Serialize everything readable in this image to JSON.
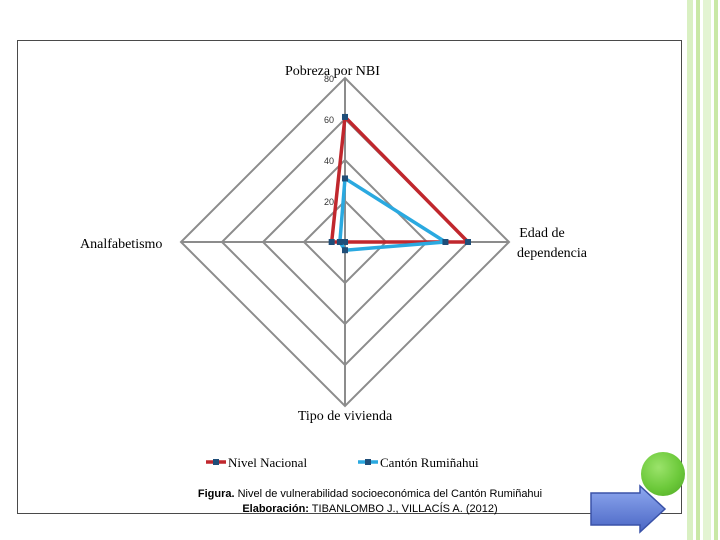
{
  "colors": {
    "grid": "#8c8c8c",
    "nivel_nacional": "#c0272d",
    "canton_rumiñahui": "#2aa9e0",
    "stripe_green": "#c9e8a6",
    "dot_green": "#6cc93a",
    "arrow_blue": "#5b7bd5"
  },
  "chart_data": {
    "type": "radar",
    "axes": [
      "Pobreza por NBI",
      "Edad de dependencia",
      "Tipo de vivienda",
      "Analfabetismo"
    ],
    "rlim": [
      0,
      80
    ],
    "ticks": [
      "80",
      "60",
      "40",
      "20"
    ],
    "tick_values": [
      80,
      60,
      40,
      20
    ],
    "series": [
      {
        "name": "Nivel Nacional",
        "values": [
          61,
          60,
          0,
          6.5
        ],
        "color": "#c0272d"
      },
      {
        "name": "Cantón Rumiñahui",
        "values": [
          31,
          49,
          4,
          2.5
        ],
        "color": "#2aa9e0"
      }
    ],
    "legend_position": "bottom"
  },
  "caption": {
    "line1_bold": "Figura.",
    "line1_text": " Nivel de vulnerabilidad socioeconómica del Cantón Rumiñahui",
    "line2_bold": "Elaboración:",
    "line2_text": " TIBANLOMBO J., VILLACÍS A. (2012)"
  },
  "icons": {
    "next": "next-arrow-icon",
    "decoration": "green-circle"
  }
}
